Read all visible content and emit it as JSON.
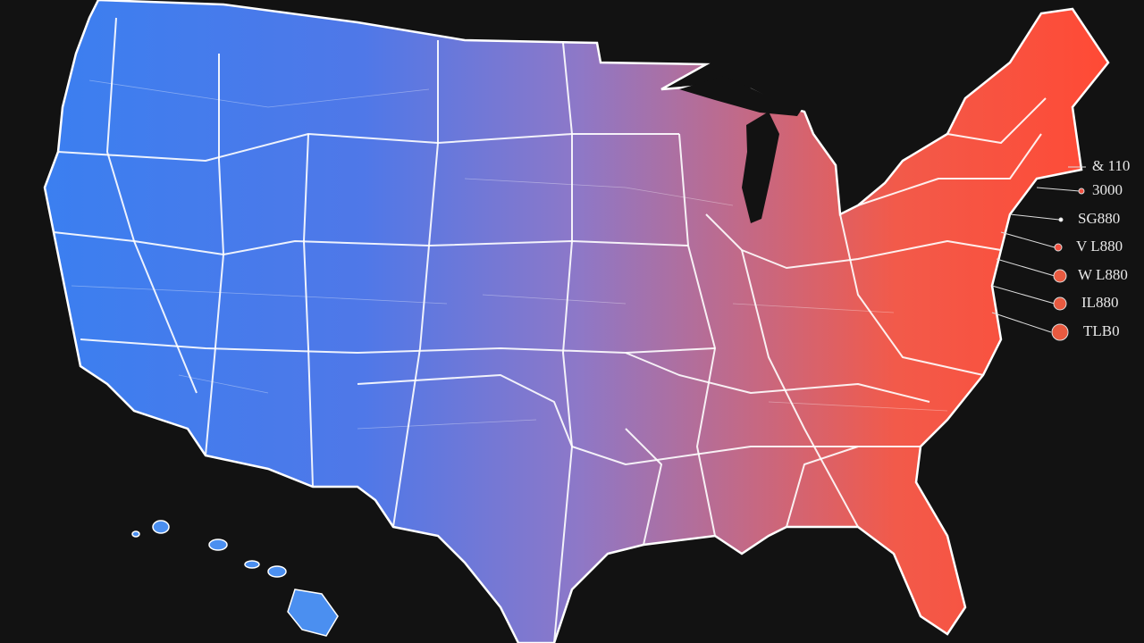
{
  "legend": {
    "items": [
      {
        "label": "& 110"
      },
      {
        "label": "3000"
      },
      {
        "label": "SG880"
      },
      {
        "label": "V L880"
      },
      {
        "label": "W L880"
      },
      {
        "label": "IL880"
      },
      {
        "label": "TLB0"
      }
    ]
  }
}
